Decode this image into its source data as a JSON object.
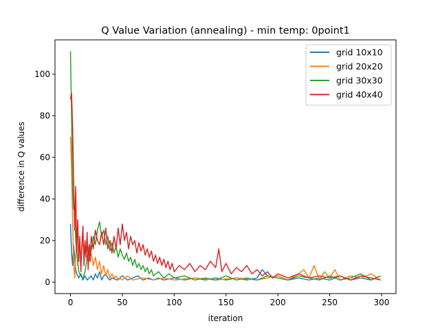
{
  "chart_data": {
    "type": "line",
    "title": "Q Value Variation (annealing) - min temp: 0point1",
    "xlabel": "iteration",
    "ylabel": "difference in Q values",
    "xlim": [
      -14.95,
      313.95
    ],
    "ylim": [
      -5.5,
      116.5
    ],
    "xticks": [
      0,
      50,
      100,
      150,
      200,
      250,
      300
    ],
    "yticks": [
      0,
      20,
      40,
      60,
      80,
      100
    ],
    "grid": false,
    "legend_position": "top-right",
    "series": [
      {
        "name": "grid 10x10",
        "color": "#1f77b4",
        "points": [
          [
            0,
            28
          ],
          [
            1,
            14
          ],
          [
            2,
            8
          ],
          [
            3,
            18
          ],
          [
            4,
            12
          ],
          [
            5,
            6
          ],
          [
            6,
            4
          ],
          [
            7,
            3
          ],
          [
            8,
            2
          ],
          [
            10,
            4
          ],
          [
            12,
            1
          ],
          [
            14,
            3
          ],
          [
            16,
            1
          ],
          [
            18,
            2
          ],
          [
            20,
            3
          ],
          [
            22,
            1
          ],
          [
            24,
            4
          ],
          [
            26,
            2
          ],
          [
            28,
            5
          ],
          [
            30,
            1
          ],
          [
            32,
            3
          ],
          [
            34,
            4
          ],
          [
            36,
            2
          ],
          [
            38,
            1
          ],
          [
            40,
            2
          ],
          [
            45,
            1
          ],
          [
            50,
            3
          ],
          [
            55,
            1
          ],
          [
            60,
            2
          ],
          [
            65,
            3
          ],
          [
            70,
            1
          ],
          [
            75,
            2
          ],
          [
            80,
            1
          ],
          [
            85,
            2
          ],
          [
            90,
            1
          ],
          [
            100,
            2
          ],
          [
            110,
            1
          ],
          [
            120,
            2
          ],
          [
            130,
            1
          ],
          [
            140,
            2
          ],
          [
            150,
            1
          ],
          [
            160,
            2
          ],
          [
            170,
            1
          ],
          [
            180,
            2
          ],
          [
            185,
            6
          ],
          [
            190,
            3
          ],
          [
            200,
            2
          ],
          [
            210,
            1
          ],
          [
            220,
            2
          ],
          [
            230,
            1
          ],
          [
            240,
            2
          ],
          [
            250,
            1
          ],
          [
            260,
            3
          ],
          [
            270,
            1
          ],
          [
            280,
            2
          ],
          [
            290,
            1
          ],
          [
            299,
            3
          ]
        ]
      },
      {
        "name": "grid 20x20",
        "color": "#ff7f0e",
        "points": [
          [
            0,
            70
          ],
          [
            1,
            55
          ],
          [
            2,
            30
          ],
          [
            3,
            10
          ],
          [
            4,
            2
          ],
          [
            5,
            12
          ],
          [
            6,
            20
          ],
          [
            7,
            8
          ],
          [
            8,
            16
          ],
          [
            9,
            18
          ],
          [
            10,
            12
          ],
          [
            12,
            20
          ],
          [
            14,
            14
          ],
          [
            16,
            16
          ],
          [
            18,
            10
          ],
          [
            20,
            14
          ],
          [
            22,
            8
          ],
          [
            24,
            12
          ],
          [
            26,
            6
          ],
          [
            28,
            10
          ],
          [
            30,
            4
          ],
          [
            32,
            8
          ],
          [
            34,
            3
          ],
          [
            36,
            6
          ],
          [
            38,
            2
          ],
          [
            40,
            4
          ],
          [
            42,
            2
          ],
          [
            44,
            3
          ],
          [
            46,
            1
          ],
          [
            48,
            2
          ],
          [
            50,
            1
          ],
          [
            55,
            3
          ],
          [
            60,
            1
          ],
          [
            70,
            2
          ],
          [
            80,
            1
          ],
          [
            90,
            2
          ],
          [
            100,
            1
          ],
          [
            120,
            2
          ],
          [
            140,
            1
          ],
          [
            160,
            2
          ],
          [
            180,
            1
          ],
          [
            200,
            3
          ],
          [
            210,
            1
          ],
          [
            220,
            4
          ],
          [
            225,
            6
          ],
          [
            230,
            2
          ],
          [
            235,
            8
          ],
          [
            240,
            1
          ],
          [
            245,
            5
          ],
          [
            250,
            2
          ],
          [
            255,
            6
          ],
          [
            260,
            1
          ],
          [
            270,
            3
          ],
          [
            280,
            2
          ],
          [
            290,
            4
          ],
          [
            299,
            1
          ]
        ]
      },
      {
        "name": "grid 30x30",
        "color": "#2ca02c",
        "points": [
          [
            0,
            111
          ],
          [
            1,
            80
          ],
          [
            2,
            45
          ],
          [
            3,
            35
          ],
          [
            4,
            36
          ],
          [
            5,
            20
          ],
          [
            6,
            15
          ],
          [
            7,
            10
          ],
          [
            8,
            5
          ],
          [
            10,
            3
          ],
          [
            12,
            2
          ],
          [
            14,
            5
          ],
          [
            16,
            12
          ],
          [
            18,
            18
          ],
          [
            20,
            15
          ],
          [
            22,
            22
          ],
          [
            24,
            18
          ],
          [
            26,
            25
          ],
          [
            28,
            29
          ],
          [
            30,
            22
          ],
          [
            32,
            25
          ],
          [
            34,
            18
          ],
          [
            36,
            22
          ],
          [
            38,
            15
          ],
          [
            40,
            19
          ],
          [
            42,
            14
          ],
          [
            44,
            17
          ],
          [
            46,
            12
          ],
          [
            48,
            16
          ],
          [
            50,
            13
          ],
          [
            52,
            11
          ],
          [
            54,
            14
          ],
          [
            56,
            10
          ],
          [
            58,
            12
          ],
          [
            60,
            8
          ],
          [
            62,
            11
          ],
          [
            64,
            7
          ],
          [
            66,
            9
          ],
          [
            68,
            6
          ],
          [
            70,
            8
          ],
          [
            72,
            5
          ],
          [
            74,
            7
          ],
          [
            76,
            4
          ],
          [
            78,
            6
          ],
          [
            80,
            3
          ],
          [
            85,
            5
          ],
          [
            90,
            2
          ],
          [
            95,
            4
          ],
          [
            100,
            2
          ],
          [
            110,
            3
          ],
          [
            120,
            1
          ],
          [
            130,
            2
          ],
          [
            140,
            1
          ],
          [
            150,
            3
          ],
          [
            160,
            1
          ],
          [
            170,
            2
          ],
          [
            180,
            1
          ],
          [
            190,
            3
          ],
          [
            200,
            2
          ],
          [
            210,
            1
          ],
          [
            220,
            3
          ],
          [
            230,
            2
          ],
          [
            240,
            1
          ],
          [
            250,
            3
          ],
          [
            260,
            1
          ],
          [
            270,
            2
          ],
          [
            280,
            4
          ],
          [
            290,
            1
          ],
          [
            299,
            3
          ]
        ]
      },
      {
        "name": "grid 40x40",
        "color": "#d62728",
        "points": [
          [
            0,
            88
          ],
          [
            1,
            91
          ],
          [
            2,
            75
          ],
          [
            3,
            50
          ],
          [
            4,
            25
          ],
          [
            5,
            46
          ],
          [
            6,
            15
          ],
          [
            7,
            30
          ],
          [
            8,
            10
          ],
          [
            9,
            22
          ],
          [
            10,
            5
          ],
          [
            11,
            18
          ],
          [
            12,
            27
          ],
          [
            13,
            8
          ],
          [
            14,
            20
          ],
          [
            15,
            12
          ],
          [
            16,
            24
          ],
          [
            17,
            6
          ],
          [
            18,
            18
          ],
          [
            19,
            10
          ],
          [
            20,
            22
          ],
          [
            22,
            16
          ],
          [
            24,
            25
          ],
          [
            26,
            20
          ],
          [
            28,
            18
          ],
          [
            30,
            24
          ],
          [
            32,
            18
          ],
          [
            34,
            26
          ],
          [
            36,
            16
          ],
          [
            38,
            20
          ],
          [
            40,
            14
          ],
          [
            42,
            22
          ],
          [
            44,
            16
          ],
          [
            46,
            26
          ],
          [
            48,
            18
          ],
          [
            50,
            28
          ],
          [
            52,
            20
          ],
          [
            54,
            24
          ],
          [
            56,
            16
          ],
          [
            58,
            22
          ],
          [
            60,
            18
          ],
          [
            62,
            20
          ],
          [
            64,
            14
          ],
          [
            66,
            19
          ],
          [
            68,
            15
          ],
          [
            70,
            18
          ],
          [
            72,
            13
          ],
          [
            74,
            16
          ],
          [
            76,
            12
          ],
          [
            78,
            15
          ],
          [
            80,
            10
          ],
          [
            82,
            13
          ],
          [
            84,
            9
          ],
          [
            86,
            12
          ],
          [
            88,
            8
          ],
          [
            90,
            11
          ],
          [
            92,
            7
          ],
          [
            94,
            10
          ],
          [
            96,
            6
          ],
          [
            98,
            9
          ],
          [
            100,
            5
          ],
          [
            105,
            8
          ],
          [
            110,
            6
          ],
          [
            115,
            9
          ],
          [
            120,
            5
          ],
          [
            125,
            8
          ],
          [
            130,
            6
          ],
          [
            135,
            10
          ],
          [
            140,
            7
          ],
          [
            143,
            16
          ],
          [
            146,
            5
          ],
          [
            150,
            9
          ],
          [
            155,
            4
          ],
          [
            160,
            7
          ],
          [
            165,
            5
          ],
          [
            170,
            8
          ],
          [
            175,
            4
          ],
          [
            180,
            6
          ],
          [
            185,
            3
          ],
          [
            190,
            5
          ],
          [
            195,
            2
          ],
          [
            200,
            4
          ],
          [
            210,
            2
          ],
          [
            220,
            4
          ],
          [
            230,
            2
          ],
          [
            240,
            3
          ],
          [
            250,
            2
          ],
          [
            260,
            3
          ],
          [
            270,
            1
          ],
          [
            280,
            3
          ],
          [
            290,
            2
          ],
          [
            299,
            1
          ]
        ]
      }
    ]
  }
}
